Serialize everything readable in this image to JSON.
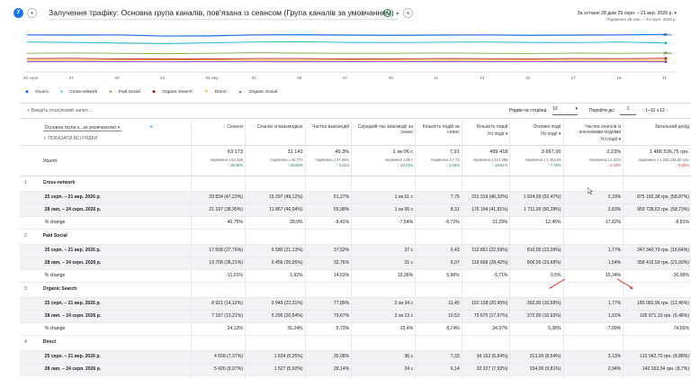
{
  "app": {
    "title": "Залучення трафіку: Основна група каналів, пов’язана із сеансом (Група каналів за умовчанням)",
    "date_range_label": "За останні 28 днів",
    "date_range": "25 серп. – 21 вер. 2026 р.",
    "compare_range": "Порівняно 28 лип. – 24 серп. 2026 р."
  },
  "chart_data": {
    "type": "line",
    "x": [
      "25 серп.",
      "27",
      "29",
      "31",
      "01 вер.",
      "03",
      "05",
      "07",
      "09",
      "11",
      "13",
      "15",
      "17",
      "19",
      "21"
    ],
    "series": [
      {
        "name": "Усього",
        "color": "#1a73e8",
        "values": [
          1.98,
          1.97,
          1.98,
          1.92,
          1.93,
          1.98,
          1.99,
          1.97,
          1.96,
          1.97,
          1.98,
          1.96,
          1.97,
          1.98,
          2.0
        ]
      },
      {
        "name": "Cross-network",
        "color": "#12b5cb",
        "values": [
          1.6,
          1.58,
          1.55,
          1.52,
          1.56,
          1.6,
          1.62,
          1.58,
          1.57,
          1.59,
          1.6,
          1.58,
          1.57,
          1.6,
          1.55
        ]
      },
      {
        "name": "Paid Social",
        "color": "#7cb342",
        "values": [
          1.0,
          1.02,
          1.0,
          0.98,
          1.0,
          1.03,
          1.01,
          1.0,
          1.0,
          1.02,
          1.0,
          0.99,
          1.01,
          1.0,
          1.02
        ]
      },
      {
        "name": "Organic Search",
        "color": "#b31412",
        "values": [
          0.72,
          0.73,
          0.7,
          0.7,
          0.7,
          0.72,
          0.72,
          0.7,
          0.7,
          0.72,
          0.71,
          0.7,
          0.72,
          0.71,
          0.73
        ]
      },
      {
        "name": "Direct",
        "color": "#f9ab00",
        "values": [
          0.62,
          0.63,
          0.63,
          0.65,
          0.64,
          0.62,
          0.62,
          0.63,
          0.62,
          0.62,
          0.63,
          0.62,
          0.63,
          0.62,
          0.62
        ]
      },
      {
        "name": "Organic Social",
        "color": "#9334e6",
        "values": [
          0.55,
          0.56,
          0.55,
          0.56,
          0.55,
          0.56,
          0.55,
          0.55,
          0.56,
          0.55,
          0.55,
          0.56,
          0.55,
          0.55,
          0.55
        ]
      }
    ],
    "y_tick_labels": [
      "2 тис.",
      "1 тис."
    ],
    "ylim": [
      0,
      2.5
    ],
    "xlabel": "",
    "ylabel": ""
  },
  "legend": [
    "Усього",
    "Cross-network",
    "Paid Social",
    "Organic Search",
    "Direct",
    "Organic Social"
  ],
  "toolbar": {
    "search_placeholder": "Введіть пошуковий запит...",
    "rows_per_page_label": "Рядків на сторінці:",
    "rows_per_page": "10",
    "goto_label": "Перейти до:",
    "goto_value": "1",
    "pager": "1–10 з 12"
  },
  "dimension": {
    "select": "Основна група к...за умовчанням)",
    "show_all": "ПОКАЗАТИ ВСІ РЯДКИ",
    "total_label": "Усього"
  },
  "columns": [
    "Сеанси",
    "Сеанси із взаємодією",
    "Частка взаємодій",
    "Середній час взаємодії за сеанс",
    "Кількість подій за сеанс",
    "Кількість подій",
    "Основні події",
    "Частка сеансів із ключовими подіями",
    "Загальний дохід"
  ],
  "col_sub": [
    "",
    "",
    "",
    "",
    "",
    "Усі події",
    "Усі події",
    "Усі події",
    ""
  ],
  "totals": [
    {
      "v": "63 173",
      "c": "порівняно з 54 428",
      "p": "↑ 16,06%",
      "d": "up"
    },
    {
      "v": "31 143",
      "c": "порівняно з 25 773",
      "p": "↑ 20,84%",
      "d": "up"
    },
    {
      "v": "49,3%",
      "c": "порівняно з 47,35%",
      "p": "↑ 4,11%",
      "d": "up"
    },
    {
      "v": "1 хв 06 с",
      "c": "порівняно з 59 с",
      "p": "↑ 10,74%",
      "d": "up"
    },
    {
      "v": "7,91",
      "c": "порівняно з 7,74",
      "p": "↑ 2,18%",
      "d": "up"
    },
    {
      "v": "499 418",
      "c": "порівняно з 421 396",
      "p": "↑ 18,51%",
      "d": "up"
    },
    {
      "v": "3 667,00",
      "c": "порівняно з 3 403,00",
      "p": "↑ 7,76%",
      "d": "up"
    },
    {
      "v": "2,23%",
      "c": "порівняно з 2,33%",
      "p": "↓ 4,16%",
      "d": "dn"
    },
    {
      "v": "1 486 536,75 грн.",
      "c": "порівняно з 1 638 135,60 грн.",
      "p": "↓ 9,25%",
      "d": "dn"
    }
  ],
  "groups": [
    {
      "n": "1",
      "name": "Cross-network",
      "rows": [
        {
          "label": "25 серп. – 21 вер. 2026 р.",
          "v": [
            "29 834 (47,23%)",
            "15 297 (49,12%)",
            "51,27%",
            "1 хв 01 с",
            "7,75",
            "231 319 (46,32%)",
            "1 924,00 (52,47%)",
            "2,33%",
            "875 182,38 грн. (58,87%)"
          ]
        },
        {
          "label": "28 лип. – 24 серп. 2026 р.",
          "v": [
            "21 197 (38,95%)",
            "11 867 (46,04%)",
            "55,98%",
            "1 хв 06 с",
            "8,31",
            "176 194 (41,81%)",
            "1 711,00 (50,28%)",
            "2,83%",
            "959 728,63 грн. (58,73%)"
          ]
        },
        {
          "label": "% change",
          "v": [
            "40,75%",
            "28,9%",
            "-8,41%",
            "-7,54%",
            "-6,72%",
            "31,29%",
            "12,45%",
            "-17,82%",
            "-8,81%"
          ]
        }
      ]
    },
    {
      "n": "2",
      "name": "Paid Social",
      "rows": [
        {
          "label": "25 серп. – 21 вер. 2026 р.",
          "v": [
            "17 508 (27,76%)",
            "6 580 (21,13%)",
            "37,52%",
            "37 с",
            "6,43",
            "112 851 (22,59%)",
            "810,00 (22,09%)",
            "1,77%",
            "247 340,79 грн. (16,64%)"
          ]
        },
        {
          "label": "28 лип. – 24 серп. 2026 р.",
          "v": [
            "19 708 (36,21%)",
            "6 456 (25,05%)",
            "32,76%",
            "31 с",
            "6,07",
            "119 668 (28,42%)",
            "806,00 (23,68%)",
            "1,54%",
            "358 419,59 грн. (21,93%)"
          ]
        },
        {
          "label": "% change",
          "v": [
            "-11,01%",
            "1,92%",
            "14,53%",
            "19,36%",
            "5,96%",
            "-5,71%",
            "0,5%",
            "15,34%",
            "-30,99%"
          ]
        }
      ]
    },
    {
      "n": "3",
      "name": "Organic Search",
      "rows": [
        {
          "label": "25 серп. – 21 вер. 2026 р.",
          "v": [
            "8 921 (14,12%)",
            "6 949 (22,31%)",
            "77,89%",
            "2 хв 34 с",
            "11,45",
            "102 138 (20,45%)",
            "392,00 (10,69%)",
            "1,77%",
            "185 081,96 грн. (12,45%)"
          ]
        },
        {
          "label": "28 лип. – 24 серп. 2026 р.",
          "v": [
            "7 187 (13,21%)",
            "5 295 (20,54%)",
            "73,67%",
            "2 хв 13 с",
            "10,53",
            "75 670 (17,97%)",
            "372,00 (10,93%)",
            "1,91%",
            "105 971,10 грн. (6,48%)"
          ]
        },
        {
          "label": "% change",
          "v": [
            "24,13%",
            "31,24%",
            "5,73%",
            "15,4%",
            "8,74%",
            "34,97%",
            "5,38%",
            "-7,09%",
            "74,65%"
          ]
        }
      ]
    },
    {
      "n": "4",
      "name": "Direct",
      "rows": [
        {
          "label": "25 серп. – 21 вер. 2026 р.",
          "v": [
            "4 658 (7,37%)",
            "1 634 (5,25%)",
            "35,08%",
            "36 с",
            "7,33",
            "34 163 (6,84%)",
            "313,00 (8,54%)",
            "3,13%",
            "132 042,70 грн. (8,88%)"
          ]
        },
        {
          "label": "28 лип. – 24 серп. 2026 р.",
          "v": [
            "5 426 (9,97%)",
            "1 527 (5,92%)",
            "28,14%",
            "24 с",
            "6,14",
            "33 327 (7,92%)",
            "334,00 (9,81%)",
            "2,94%",
            "142 163,34 грн. (8,7%)"
          ]
        },
        {
          "label": "% change",
          "v": [
            "-14,15%",
            "7,01%",
            "24,65%",
            "46,41%",
            "19,41%",
            "2,51%",
            "-6,29%",
            "5,68%",
            "-7,12%"
          ]
        }
      ]
    }
  ]
}
